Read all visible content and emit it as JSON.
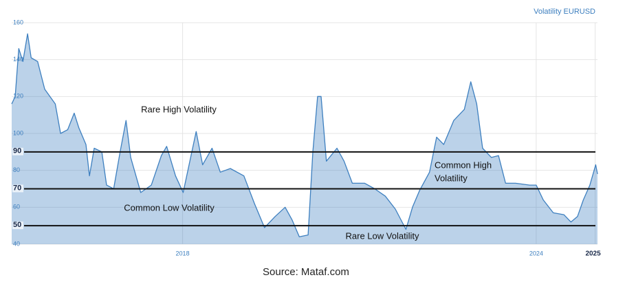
{
  "chart_data": {
    "type": "area",
    "x": [
      2015.1,
      2015.16,
      2015.22,
      2015.29,
      2015.37,
      2015.43,
      2015.54,
      2015.66,
      2015.84,
      2015.93,
      2016.05,
      2016.16,
      2016.24,
      2016.36,
      2016.42,
      2016.5,
      2016.63,
      2016.71,
      2016.83,
      2016.94,
      2017.04,
      2017.12,
      2017.29,
      2017.47,
      2017.64,
      2017.73,
      2017.88,
      2018.01,
      2018.11,
      2018.23,
      2018.34,
      2018.5,
      2018.64,
      2018.81,
      2019.04,
      2019.22,
      2019.39,
      2019.57,
      2019.74,
      2019.86,
      2019.98,
      2020.13,
      2020.21,
      2020.29,
      2020.35,
      2020.44,
      2020.62,
      2020.74,
      2020.88,
      2021.09,
      2021.26,
      2021.44,
      2021.61,
      2021.79,
      2021.9,
      2022.02,
      2022.19,
      2022.31,
      2022.43,
      2022.6,
      2022.78,
      2022.89,
      2022.99,
      2023.09,
      2023.24,
      2023.36,
      2023.48,
      2023.65,
      2023.89,
      2024.0,
      2024.12,
      2024.29,
      2024.47,
      2024.59,
      2024.7,
      2024.8,
      2024.91,
      2025.01,
      2025.04
    ],
    "series": [
      {
        "name": "Volatility EURUSD",
        "color": "#3d7fbf",
        "values": [
          116,
          120,
          146,
          139,
          154,
          141,
          139,
          124,
          116,
          100,
          102,
          111,
          103,
          94,
          77,
          92,
          90,
          72,
          70,
          90,
          107,
          87,
          68,
          72,
          88,
          93,
          77,
          68,
          83,
          101,
          83,
          92,
          79,
          81,
          77,
          62,
          49,
          55,
          60,
          53,
          44,
          45,
          90,
          120,
          120,
          85,
          92,
          85,
          73,
          73,
          70,
          66,
          59,
          48,
          60,
          69,
          79,
          98,
          94,
          107,
          113,
          128,
          116,
          92,
          87,
          88,
          73,
          73,
          72,
          72,
          64,
          57,
          56,
          52,
          55,
          64,
          72,
          83,
          78
        ]
      }
    ],
    "xlim": [
      2015.1,
      2025.04
    ],
    "xticks": [
      2018,
      2024,
      2025
    ],
    "ylim": [
      40,
      160
    ],
    "yticks": [
      40,
      60,
      80,
      100,
      120,
      140,
      160
    ],
    "grid": true,
    "levels": [
      90,
      70,
      50
    ],
    "annotations": [
      "Rare High Volatility",
      "Common Low Volatility",
      "Rare Low Volatility",
      [
        "Common High",
        "Volatility"
      ]
    ],
    "source": "Source: Mataf.com"
  }
}
